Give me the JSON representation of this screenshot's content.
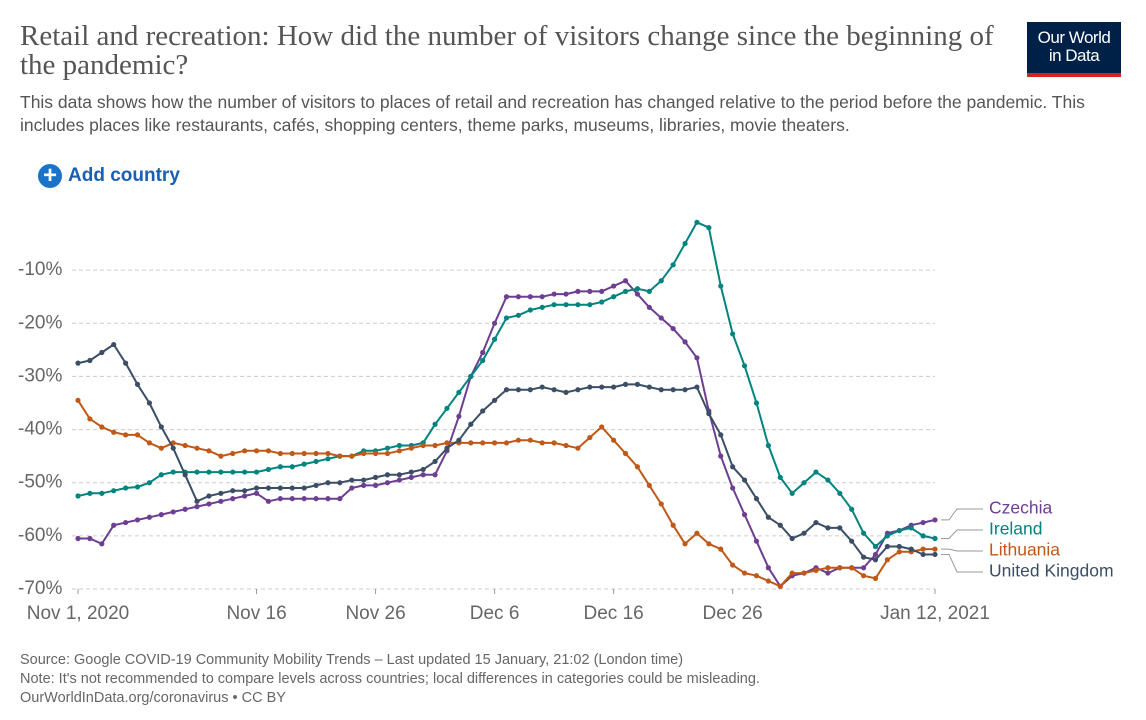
{
  "chart_data": {
    "type": "line",
    "title": "Retail and recreation: How did the number of visitors change since the beginning of the pandemic?",
    "subtitle": "This data shows how the number of visitors to places of retail and recreation has changed relative to the period before the pandemic. This includes places like restaurants, cafés, shopping centers, theme parks, museums, libraries, movie theaters.",
    "logo": [
      "Our World",
      "in Data"
    ],
    "button": "Add country",
    "footer": [
      "Source: Google COVID-19 Community Mobility Trends – Last updated 15 January, 21:02 (London time)",
      "Note: It's not recommended to compare levels across countries; local differences in categories could be misleading.",
      "OurWorldInData.org/coronavirus • CC BY"
    ],
    "x": [
      "2020-11-01",
      "2020-11-02",
      "2020-11-03",
      "2020-11-04",
      "2020-11-05",
      "2020-11-06",
      "2020-11-07",
      "2020-11-08",
      "2020-11-09",
      "2020-11-10",
      "2020-11-11",
      "2020-11-12",
      "2020-11-13",
      "2020-11-14",
      "2020-11-15",
      "2020-11-16",
      "2020-11-17",
      "2020-11-18",
      "2020-11-19",
      "2020-11-20",
      "2020-11-21",
      "2020-11-22",
      "2020-11-23",
      "2020-11-24",
      "2020-11-25",
      "2020-11-26",
      "2020-11-27",
      "2020-11-28",
      "2020-11-29",
      "2020-11-30",
      "2020-12-01",
      "2020-12-02",
      "2020-12-03",
      "2020-12-04",
      "2020-12-05",
      "2020-12-06",
      "2020-12-07",
      "2020-12-08",
      "2020-12-09",
      "2020-12-10",
      "2020-12-11",
      "2020-12-12",
      "2020-12-13",
      "2020-12-14",
      "2020-12-15",
      "2020-12-16",
      "2020-12-17",
      "2020-12-18",
      "2020-12-19",
      "2020-12-20",
      "2020-12-21",
      "2020-12-22",
      "2020-12-23",
      "2020-12-24",
      "2020-12-25",
      "2020-12-26",
      "2020-12-27",
      "2020-12-28",
      "2020-12-29",
      "2020-12-30",
      "2020-12-31",
      "2021-01-01",
      "2021-01-02",
      "2021-01-03",
      "2021-01-04",
      "2021-01-05",
      "2021-01-06",
      "2021-01-07",
      "2021-01-08",
      "2021-01-09",
      "2021-01-10",
      "2021-01-11",
      "2021-01-12"
    ],
    "xlim": [
      "2020-11-01",
      "2021-01-12"
    ],
    "xticks": [
      {
        "value": "2020-11-01",
        "label": "Nov 1, 2020"
      },
      {
        "value": "2020-11-16",
        "label": "Nov 16"
      },
      {
        "value": "2020-11-26",
        "label": "Nov 26"
      },
      {
        "value": "2020-12-06",
        "label": "Dec 6"
      },
      {
        "value": "2020-12-16",
        "label": "Dec 16"
      },
      {
        "value": "2020-12-26",
        "label": "Dec 26"
      },
      {
        "value": "2021-01-12",
        "label": "Jan 12, 2021"
      }
    ],
    "ylim": [
      -70,
      0
    ],
    "yticks": [
      {
        "value": -10,
        "label": "-10%"
      },
      {
        "value": -20,
        "label": "-20%"
      },
      {
        "value": -30,
        "label": "-30%"
      },
      {
        "value": -40,
        "label": "-40%"
      },
      {
        "value": -50,
        "label": "-50%"
      },
      {
        "value": -60,
        "label": "-60%"
      },
      {
        "value": -70,
        "label": "-70%"
      }
    ],
    "grid": true,
    "series": [
      {
        "name": "Czechia",
        "color": "#6d3e91",
        "values": [
          -60.5,
          -60.5,
          -61.5,
          -58,
          -57.5,
          -57,
          -56.5,
          -56,
          -55.5,
          -55,
          -54.5,
          -54,
          -53.5,
          -53,
          -52.5,
          -52,
          -53.5,
          -53,
          -53,
          -53,
          -53,
          -53,
          -53,
          -51,
          -50.5,
          -50.5,
          -50,
          -49.5,
          -49,
          -48.5,
          -48.5,
          -44,
          -37.5,
          -30,
          -25.5,
          -20,
          -15,
          -15,
          -15,
          -15,
          -14.5,
          -14.5,
          -14,
          -14,
          -14,
          -13,
          -12,
          -14.5,
          -17,
          -19,
          -21,
          -23.5,
          -26.5,
          -36.5,
          -45,
          -51,
          -56,
          -61,
          -66,
          -69.5,
          -67.5,
          -67,
          -66,
          -67,
          -66,
          -66,
          -66,
          -63.5,
          -59.5,
          -59,
          -58,
          -57.5,
          -57
        ]
      },
      {
        "name": "Ireland",
        "color": "#00847e",
        "values": [
          -52.5,
          -52,
          -52,
          -51.5,
          -51,
          -50.8,
          -50,
          -48.5,
          -48,
          -48,
          -48,
          -48,
          -48,
          -48,
          -48,
          -48,
          -47.5,
          -47,
          -47,
          -46.5,
          -46,
          -45.5,
          -45,
          -45,
          -44,
          -44,
          -43.5,
          -43,
          -43,
          -42.5,
          -39,
          -36,
          -33,
          -30,
          -27,
          -23,
          -19,
          -18.5,
          -17.5,
          -17,
          -16.5,
          -16.5,
          -16.5,
          -16.5,
          -16,
          -15,
          -14,
          -13.5,
          -14,
          -12,
          -9,
          -5,
          -1,
          -2,
          -13,
          -22,
          -28,
          -35,
          -43,
          -49,
          -52,
          -50,
          -48,
          -49.5,
          -52,
          -55,
          -59.5,
          -62,
          -60,
          -59,
          -58.5,
          -60,
          -60.5
        ]
      },
      {
        "name": "Lithuania",
        "color": "#c05917",
        "values": [
          -34.5,
          -38,
          -39.5,
          -40.5,
          -41,
          -41,
          -42.5,
          -43.5,
          -42.5,
          -43,
          -43.5,
          -44,
          -45,
          -44.5,
          -44,
          -44,
          -44,
          -44.5,
          -44.5,
          -44.5,
          -44.5,
          -44.5,
          -45,
          -45,
          -44.5,
          -44.5,
          -44.5,
          -44,
          -43.5,
          -43,
          -43,
          -42.5,
          -42.5,
          -42.5,
          -42.5,
          -42.5,
          -42.5,
          -42,
          -42,
          -42.5,
          -42.5,
          -43,
          -43.5,
          -41.5,
          -39.5,
          -42,
          -44.5,
          -47,
          -50.5,
          -54,
          -58,
          -61.5,
          -59.5,
          -61.5,
          -62.5,
          -65.5,
          -67,
          -67.5,
          -68.5,
          -69.5,
          -67,
          -67,
          -66.5,
          -66,
          -66,
          -66,
          -67.5,
          -68,
          -64.5,
          -63,
          -63,
          -62.5,
          -62.5
        ]
      },
      {
        "name": "United Kingdom",
        "color": "#3c4e66",
        "values": [
          -27.5,
          -27,
          -25.5,
          -24,
          -27.5,
          -31.5,
          -35,
          -39.5,
          -43.5,
          -48.5,
          -53.5,
          -52.5,
          -52,
          -51.5,
          -51.5,
          -51,
          -51,
          -51,
          -51,
          -51,
          -50.5,
          -50,
          -50,
          -49.5,
          -49.5,
          -49,
          -48.5,
          -48.5,
          -48,
          -47.5,
          -46,
          -43.5,
          -42,
          -39,
          -36.5,
          -34.5,
          -32.5,
          -32.5,
          -32.5,
          -32,
          -32.5,
          -33,
          -32.5,
          -32,
          -32,
          -32,
          -31.5,
          -31.5,
          -32,
          -32.5,
          -32.5,
          -32.5,
          -32,
          -37,
          -41,
          -47,
          -49.5,
          -53,
          -56.5,
          -58,
          -60.5,
          -59.5,
          -57.5,
          -58.5,
          -58.5,
          -61,
          -64,
          -64.5,
          -62,
          -62,
          -62.5,
          -63.5,
          -63.5
        ]
      }
    ]
  }
}
